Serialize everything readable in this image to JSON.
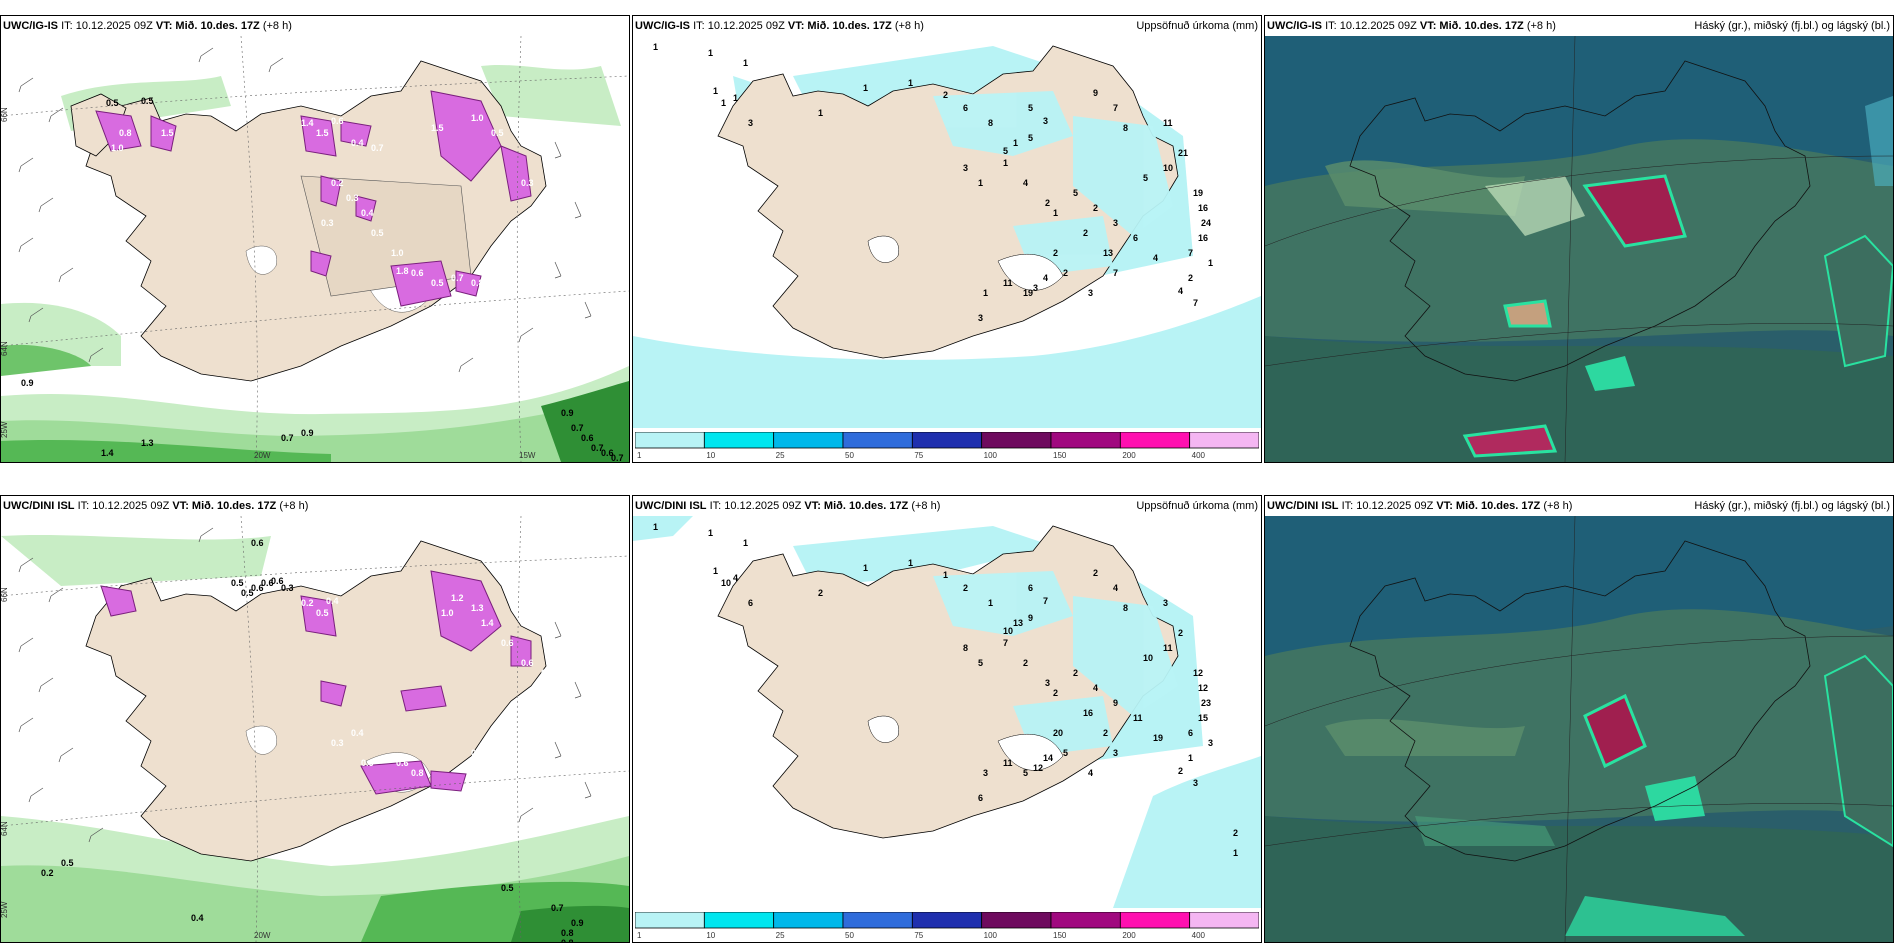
{
  "panels": [
    {
      "model": "UWC/IG-IS",
      "it": "IT: 10.12.2025 09Z",
      "vt": "VT: Mið. 10.des. 17Z",
      "lead": "(+8 h)",
      "title_right": ""
    },
    {
      "model": "UWC/IG-IS",
      "it": "IT: 10.12.2025 09Z",
      "vt": "VT: Mið. 10.des. 17Z",
      "lead": "(+8 h)",
      "title_right": "Uppsöfnuð úrkoma (mm)"
    },
    {
      "model": "UWC/IG-IS",
      "it": "IT: 10.12.2025 09Z",
      "vt": "VT: Mið. 10.des. 17Z",
      "lead": "(+8 h)",
      "title_right": "Háský (gr.), miðský (fj.bl.) og lágský (bl.)"
    },
    {
      "model": "UWC/DINI ISL",
      "it": "IT: 10.12.2025 09Z",
      "vt": "VT: Mið. 10.des. 17Z",
      "lead": "(+8 h)",
      "title_right": ""
    },
    {
      "model": "UWC/DINI ISL",
      "it": "IT: 10.12.2025 09Z",
      "vt": "VT: Mið. 10.des. 17Z",
      "lead": "(+8 h)",
      "title_right": "Uppsöfnuð úrkoma (mm)"
    },
    {
      "model": "UWC/DINI ISL",
      "it": "IT: 10.12.2025 09Z",
      "vt": "VT: Mið. 10.des. 17Z",
      "lead": "(+8 h)",
      "title_right": "Háský (gr.), miðský (fj.bl.) og lágský (bl.)"
    }
  ],
  "axis_labels": {
    "lat_66": "66N",
    "lat_64": "64N",
    "lon_25": "25W",
    "lon_20": "20W",
    "lon_15": "15W"
  },
  "colorbar": {
    "ticks": [
      "1",
      "10",
      "25",
      "50",
      "75",
      "100",
      "150",
      "200",
      "400"
    ],
    "colors": [
      "#b8f3f5",
      "#00e6ef",
      "#00b8ea",
      "#2f6cdb",
      "#1f2fae",
      "#6e0a5e",
      "#a0087f",
      "#ff10b0",
      "#f4b6f2"
    ]
  },
  "wind_labels_top": [
    "0.5",
    "0.5",
    "0.8",
    "1.0",
    "1.5",
    "1.4",
    "1.5",
    "0.6",
    "0.4",
    "0.7",
    "1.5",
    "1.0",
    "0.5",
    "0.3",
    "0.2",
    "0.3",
    "0.3",
    "0.4",
    "0.5",
    "1.0",
    "0.6",
    "0.5",
    "1.8",
    "0.7",
    "0.8",
    "0.9",
    "0.7",
    "1.3",
    "1.4",
    "0.9",
    "0.7",
    "0.6",
    "0.7",
    "0.6",
    "0.7",
    "0.9"
  ],
  "wind_labels_bottom": [
    "0.6",
    "0.5",
    "0.5",
    "0.6",
    "0.6",
    "0.6",
    "0.3",
    "0.2",
    "0.5",
    "0.4",
    "1.2",
    "1.3",
    "1.4",
    "0.6",
    "0.6",
    "0.7",
    "0.4",
    "0.3",
    "0.6",
    "0.6",
    "0.8",
    "1.0",
    "0.6",
    "0.7",
    "0.6",
    "0.7",
    "0.8",
    "0.9",
    "0.7",
    "0.5",
    "0.4",
    "0.2",
    "0.5",
    "0.8"
  ],
  "precip_top": [
    "1",
    "1",
    "1",
    "1",
    "1",
    "1",
    "1",
    "3",
    "1",
    "1",
    "2",
    "6",
    "8",
    "5",
    "3",
    "5",
    "5",
    "3",
    "1",
    "2",
    "9",
    "7",
    "8",
    "11",
    "21",
    "10",
    "5",
    "19",
    "16",
    "24",
    "16",
    "7",
    "2",
    "2",
    "4",
    "3",
    "1",
    "1",
    "4",
    "1",
    "5",
    "2",
    "3",
    "6",
    "4",
    "13",
    "7",
    "3",
    "2",
    "1",
    "3",
    "11",
    "19",
    "2",
    "4",
    "7",
    "1"
  ],
  "precip_bottom": [
    "1",
    "1",
    "1",
    "1",
    "1",
    "1",
    "10",
    "6",
    "4",
    "2",
    "1",
    "2",
    "1",
    "6",
    "7",
    "9",
    "10",
    "8",
    "5",
    "3",
    "2",
    "4",
    "8",
    "3",
    "2",
    "11",
    "10",
    "12",
    "12",
    "23",
    "15",
    "6",
    "16",
    "20",
    "14",
    "12",
    "13",
    "7",
    "2",
    "2",
    "2",
    "4",
    "9",
    "11",
    "19",
    "2",
    "3",
    "4",
    "5",
    "3",
    "6",
    "11",
    "5",
    "1",
    "2",
    "3",
    "3",
    "2",
    "1"
  ]
}
